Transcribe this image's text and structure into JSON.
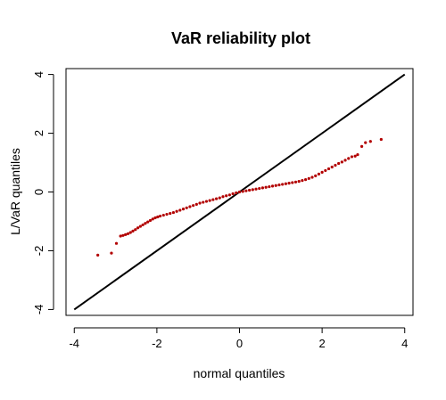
{
  "chart_data": {
    "type": "scatter",
    "title": "VaR reliability plot",
    "xlabel": "normal quantiles",
    "ylabel": "L/VaR quantiles",
    "xlim": [
      -4.2,
      4.2
    ],
    "ylim": [
      -4.2,
      4.2
    ],
    "xticks": [
      "-4",
      "-2",
      "0",
      "2",
      "4"
    ],
    "yticks": [
      "-4",
      "-2",
      "0",
      "2",
      "4"
    ],
    "xtick_values": [
      -4,
      -2,
      0,
      2,
      4
    ],
    "ytick_values": [
      -4,
      -2,
      0,
      2,
      4
    ],
    "grid": false,
    "point_color": "#b20000",
    "reference_line": {
      "x": [
        -4,
        4
      ],
      "y": [
        -4,
        4
      ],
      "color": "#000000"
    },
    "series": [
      {
        "values": [
          [
            -3.43,
            -2.15
          ],
          [
            -3.1,
            -2.08
          ],
          [
            -2.98,
            -1.75
          ],
          [
            -2.88,
            -1.5
          ],
          [
            -2.82,
            -1.48
          ],
          [
            -2.76,
            -1.45
          ],
          [
            -2.7,
            -1.42
          ],
          [
            -2.64,
            -1.38
          ],
          [
            -2.58,
            -1.33
          ],
          [
            -2.52,
            -1.28
          ],
          [
            -2.46,
            -1.22
          ],
          [
            -2.4,
            -1.17
          ],
          [
            -2.34,
            -1.12
          ],
          [
            -2.28,
            -1.07
          ],
          [
            -2.22,
            -1.02
          ],
          [
            -2.16,
            -0.97
          ],
          [
            -2.1,
            -0.92
          ],
          [
            -2.04,
            -0.88
          ],
          [
            -1.98,
            -0.85
          ],
          [
            -1.92,
            -0.82
          ],
          [
            -1.84,
            -0.79
          ],
          [
            -1.76,
            -0.76
          ],
          [
            -1.68,
            -0.73
          ],
          [
            -1.6,
            -0.7
          ],
          [
            -1.52,
            -0.66
          ],
          [
            -1.44,
            -0.62
          ],
          [
            -1.36,
            -0.58
          ],
          [
            -1.28,
            -0.54
          ],
          [
            -1.2,
            -0.5
          ],
          [
            -1.12,
            -0.46
          ],
          [
            -1.04,
            -0.42
          ],
          [
            -0.96,
            -0.38
          ],
          [
            -0.88,
            -0.35
          ],
          [
            -0.8,
            -0.32
          ],
          [
            -0.72,
            -0.29
          ],
          [
            -0.64,
            -0.26
          ],
          [
            -0.56,
            -0.23
          ],
          [
            -0.48,
            -0.2
          ],
          [
            -0.4,
            -0.16
          ],
          [
            -0.32,
            -0.13
          ],
          [
            -0.24,
            -0.1
          ],
          [
            -0.16,
            -0.06
          ],
          [
            -0.08,
            -0.03
          ],
          [
            0.0,
            0.0
          ],
          [
            0.08,
            0.02
          ],
          [
            0.16,
            0.04
          ],
          [
            0.24,
            0.06
          ],
          [
            0.32,
            0.08
          ],
          [
            0.4,
            0.1
          ],
          [
            0.48,
            0.12
          ],
          [
            0.56,
            0.14
          ],
          [
            0.64,
            0.16
          ],
          [
            0.72,
            0.18
          ],
          [
            0.8,
            0.2
          ],
          [
            0.88,
            0.22
          ],
          [
            0.96,
            0.24
          ],
          [
            1.04,
            0.26
          ],
          [
            1.12,
            0.28
          ],
          [
            1.2,
            0.3
          ],
          [
            1.28,
            0.32
          ],
          [
            1.36,
            0.34
          ],
          [
            1.44,
            0.36
          ],
          [
            1.52,
            0.39
          ],
          [
            1.6,
            0.42
          ],
          [
            1.68,
            0.46
          ],
          [
            1.76,
            0.5
          ],
          [
            1.84,
            0.55
          ],
          [
            1.92,
            0.61
          ],
          [
            2.0,
            0.67
          ],
          [
            2.08,
            0.73
          ],
          [
            2.16,
            0.79
          ],
          [
            2.24,
            0.85
          ],
          [
            2.32,
            0.91
          ],
          [
            2.4,
            0.97
          ],
          [
            2.48,
            1.02
          ],
          [
            2.56,
            1.08
          ],
          [
            2.64,
            1.14
          ],
          [
            2.72,
            1.2
          ],
          [
            2.8,
            1.22
          ],
          [
            2.86,
            1.27
          ],
          [
            2.96,
            1.55
          ],
          [
            3.05,
            1.68
          ],
          [
            3.17,
            1.72
          ],
          [
            3.43,
            1.79
          ]
        ]
      }
    ]
  }
}
